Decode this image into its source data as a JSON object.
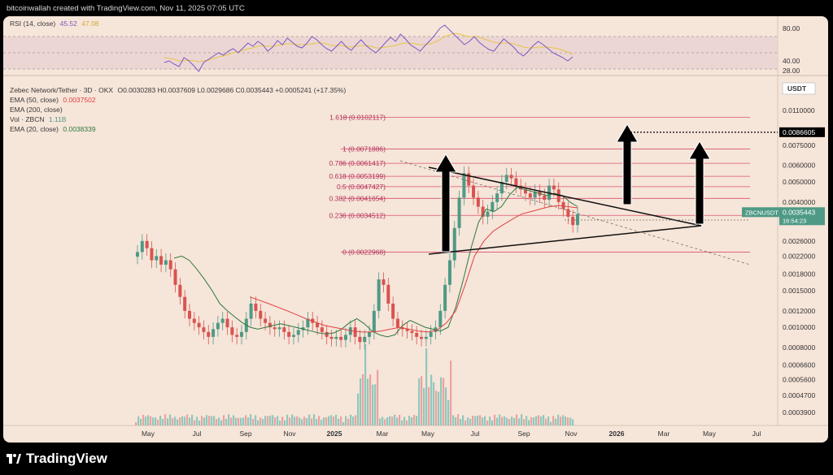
{
  "header": {
    "credit": "bitcoinwallah created with TradingView.com, Nov 11, 2025 07:05 UTC"
  },
  "rsi": {
    "label": "RSI (14, close)",
    "value": "45.52",
    "ma_value": "47.08",
    "ticks": [
      "80.00",
      "40.00",
      "28.00"
    ],
    "series": [
      38,
      40,
      36,
      33,
      44,
      40,
      34,
      27,
      38,
      42,
      46,
      50,
      47,
      52,
      55,
      50,
      56,
      62,
      58,
      64,
      60,
      52,
      57,
      65,
      60,
      68,
      63,
      58,
      56,
      62,
      70,
      66,
      60,
      55,
      52,
      58,
      64,
      57,
      53,
      60,
      66,
      59,
      54,
      50,
      56,
      63,
      69,
      64,
      73,
      67,
      60,
      56,
      52,
      59,
      65,
      72,
      80,
      84,
      78,
      72,
      66,
      60,
      64,
      70,
      63,
      58,
      54,
      52,
      60,
      67,
      62,
      57,
      50,
      46,
      52,
      59,
      64,
      60,
      55,
      50,
      47,
      44,
      40,
      45
    ],
    "ma": [
      44,
      43,
      42,
      40,
      40,
      41,
      40,
      39,
      40,
      41,
      43,
      45,
      46,
      48,
      50,
      51,
      53,
      55,
      56,
      58,
      59,
      58,
      58,
      59,
      60,
      61,
      61,
      60,
      60,
      60,
      61,
      62,
      62,
      61,
      59,
      59,
      59,
      58,
      57,
      58,
      59,
      59,
      58,
      56,
      56,
      57,
      58,
      59,
      61,
      62,
      62,
      61,
      60,
      60,
      61,
      63,
      66,
      70,
      72,
      74,
      73,
      71,
      70,
      70,
      69,
      67,
      65,
      63,
      62,
      62,
      62,
      61,
      59,
      57,
      56,
      56,
      57,
      57,
      57,
      56,
      55,
      53,
      51,
      48
    ]
  },
  "legend": {
    "symbol": "Zebec Network/Tether · 3D · OKX",
    "ohlc": "O0.0030283 H0.0037609 L0.0029686 C0.0035443 +0.0005241 (+17.35%)",
    "ema50_label": "EMA (50, close)",
    "ema50_value": "0.0037502",
    "ema200_label": "EMA (200, close)",
    "vol_label": "Vol · ZBCN",
    "vol_value": "1.11B",
    "ema20_label": "EMA (20, close)",
    "ema20_value": "0.0038339",
    "currency": "USDT"
  },
  "colors": {
    "up": "#4e9a86",
    "down": "#d9534f",
    "ema50": "#e04040",
    "ema20": "#2f7a3d",
    "rsi": "#7e57c2",
    "rsi_ma": "#e8c547",
    "fib": "#d9536f",
    "vol_up": "#90c8bc",
    "vol_down": "#f0a0a0"
  },
  "chart_data": {
    "type": "candlestick",
    "symbol": "ZBCNUSDT",
    "last_price": "0.0035443",
    "countdown": "16:54:23",
    "target_label": "0.0086605",
    "x_ticks": [
      "May",
      "Jul",
      "Sep",
      "Nov",
      "2025",
      "Mar",
      "May",
      "Jul",
      "Sep",
      "Nov",
      "2026",
      "Mar",
      "May",
      "Jul"
    ],
    "y_ticks": [
      "0.0110000",
      "0.0075000",
      "0.0060000",
      "0.0050000",
      "0.0040000",
      "0.0026000",
      "0.0022000",
      "0.0018000",
      "0.0015000",
      "0.0012000",
      "0.0010000",
      "0.0008000",
      "0.0006600",
      "0.0005600",
      "0.0004700",
      "0.0003900"
    ],
    "fib_levels": [
      {
        "label": "1.618 (0.0102117)",
        "value": 0.0102117
      },
      {
        "label": "1 (0.0071886)",
        "value": 0.0071886
      },
      {
        "label": "0.786 (0.0061417)",
        "value": 0.0061417
      },
      {
        "label": "0.618 (0.0053199)",
        "value": 0.0053199
      },
      {
        "label": "0.5 (0.0047427)",
        "value": 0.0047427
      },
      {
        "label": "0.382 (0.0041654)",
        "value": 0.0041654
      },
      {
        "label": "0.236 (0.0034512)",
        "value": 0.0034512
      },
      {
        "label": "0 (0.0022968)",
        "value": 0.0022968
      }
    ],
    "closes": [
      0.0023,
      0.0026,
      0.0024,
      0.0021,
      0.0022,
      0.002,
      0.0021,
      0.0019,
      0.0016,
      0.0014,
      0.0012,
      0.0011,
      0.00105,
      0.001,
      0.00095,
      0.0009,
      0.00098,
      0.00105,
      0.0011,
      0.001,
      0.00092,
      0.0009,
      0.00095,
      0.0011,
      0.0013,
      0.0012,
      0.0011,
      0.00105,
      0.001,
      0.00098,
      0.001,
      0.00095,
      0.0009,
      0.00092,
      0.00097,
      0.001,
      0.0011,
      0.00105,
      0.001,
      0.00095,
      0.0009,
      0.00088,
      0.0009,
      0.00087,
      0.00092,
      0.001,
      0.0009,
      0.00085,
      0.0009,
      0.00095,
      0.0012,
      0.0017,
      0.0016,
      0.0013,
      0.0011,
      0.001,
      0.00098,
      0.00096,
      0.00094,
      0.0009,
      0.00088,
      0.0009,
      0.00095,
      0.001,
      0.0012,
      0.0016,
      0.0021,
      0.003,
      0.0042,
      0.0055,
      0.0048,
      0.0042,
      0.0038,
      0.0034,
      0.0036,
      0.004,
      0.0044,
      0.005,
      0.0054,
      0.0052,
      0.0048,
      0.0046,
      0.0044,
      0.0042,
      0.0045,
      0.0043,
      0.0041,
      0.0048,
      0.0046,
      0.004,
      0.0037,
      0.0034,
      0.0031,
      0.0035
    ],
    "ema20": [
      0.00215,
      0.0022,
      0.0021,
      0.0019,
      0.0017,
      0.0015,
      0.0013,
      0.0012,
      0.00112,
      0.00105,
      0.001,
      0.00098,
      0.001,
      0.00102,
      0.00104,
      0.00102,
      0.001,
      0.00098,
      0.00096,
      0.00094,
      0.00093,
      0.00094,
      0.00098,
      0.00105,
      0.0011,
      0.00104,
      0.00096,
      0.00092,
      0.0009,
      0.00092,
      0.00102,
      0.00108,
      0.00104,
      0.001,
      0.00098,
      0.00096,
      0.001,
      0.00125,
      0.0017,
      0.0024,
      0.0032,
      0.0037,
      0.0036,
      0.0038,
      0.0043,
      0.0047,
      0.0046,
      0.0045,
      0.0044,
      0.0043,
      0.0044,
      0.0043,
      0.004,
      0.0038
    ],
    "ema50": [
      0.0014,
      0.00135,
      0.0013,
      0.00125,
      0.0012,
      0.00115,
      0.0011,
      0.00106,
      0.00102,
      0.001,
      0.00098,
      0.00096,
      0.00095,
      0.00095,
      0.00096,
      0.00098,
      0.001,
      0.00098,
      0.00096,
      0.00095,
      0.00097,
      0.00105,
      0.0012,
      0.0016,
      0.0022,
      0.0026,
      0.0029,
      0.0031,
      0.0033,
      0.0035,
      0.0036,
      0.0037,
      0.0038,
      0.00385,
      0.0038,
      0.00375
    ]
  }
}
